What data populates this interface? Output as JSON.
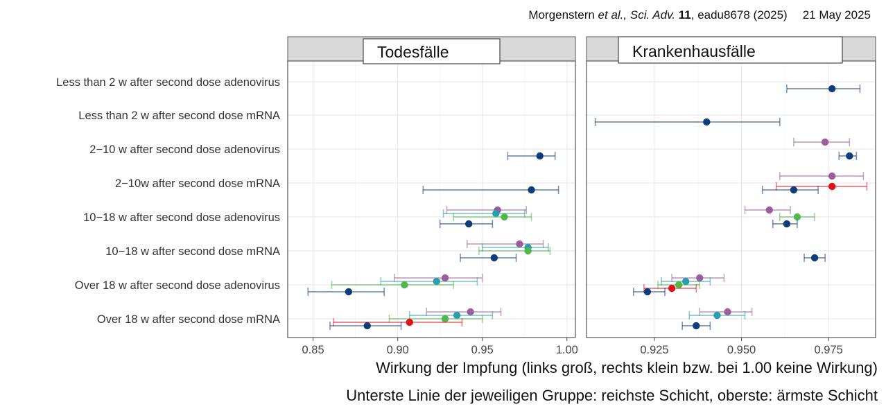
{
  "citation": {
    "authors": "Morgenstern",
    "etal": " et al., ",
    "journal": "Sci. Adv.",
    "volume": " 11",
    "article": ", eadu8678 (2025)",
    "date": "21 May 2025"
  },
  "captions": {
    "line1": "Wirkung der Impfung (links groß, rechts klein bzw. bei 1.00 keine Wirkung)",
    "line2": "Unterste Linie der jeweiligen Gruppe: reichste Schicht, oberste: ärmste Schicht"
  },
  "chart_data": {
    "type": "scatter",
    "subtype": "forest-plot",
    "grid": true,
    "categories": [
      "Less than 2 w after second dose adenovirus",
      "Less than 2 w after second dose mRNA",
      "2−10 w after second dose adenovirus",
      "2−10w after second dose mRNA",
      "10−18 w after second dose adenovirus",
      "10−18 w after second dose mRNA",
      "Over 18 w after second dose adenovirus",
      "Over 18 w after second dose mRNA"
    ],
    "colors": {
      "g1": "#9c5d9c",
      "g2": "#2a9db0",
      "g3": "#4fb848",
      "g4": "#e0111d",
      "g5": "#0f3d7a"
    },
    "panels": [
      {
        "title": "Todesfälle",
        "xlim": [
          0.835,
          1.005
        ],
        "xticks": [
          "0.85",
          "0.90",
          "0.95",
          "1.00"
        ],
        "xtick_values": [
          0.85,
          0.9,
          0.95,
          1.0
        ],
        "points": [
          {
            "row": 2,
            "group": "g5",
            "est": 0.984,
            "lo": 0.965,
            "hi": 0.993
          },
          {
            "row": 3,
            "group": "g5",
            "est": 0.979,
            "lo": 0.915,
            "hi": 0.995
          },
          {
            "row": 4,
            "group": "g1",
            "est": 0.959,
            "lo": 0.929,
            "hi": 0.976
          },
          {
            "row": 4,
            "group": "g2",
            "est": 0.958,
            "lo": 0.927,
            "hi": 0.975
          },
          {
            "row": 4,
            "group": "g3",
            "est": 0.963,
            "lo": 0.933,
            "hi": 0.979
          },
          {
            "row": 4,
            "group": "g5",
            "est": 0.942,
            "lo": 0.925,
            "hi": 0.956
          },
          {
            "row": 5,
            "group": "g1",
            "est": 0.972,
            "lo": 0.941,
            "hi": 0.986
          },
          {
            "row": 5,
            "group": "g2",
            "est": 0.977,
            "lo": 0.95,
            "hi": 0.989
          },
          {
            "row": 5,
            "group": "g3",
            "est": 0.977,
            "lo": 0.948,
            "hi": 0.99
          },
          {
            "row": 5,
            "group": "g5",
            "est": 0.957,
            "lo": 0.937,
            "hi": 0.97
          },
          {
            "row": 6,
            "group": "g1",
            "est": 0.928,
            "lo": 0.898,
            "hi": 0.95
          },
          {
            "row": 6,
            "group": "g2",
            "est": 0.923,
            "lo": 0.89,
            "hi": 0.947
          },
          {
            "row": 6,
            "group": "g3",
            "est": 0.904,
            "lo": 0.861,
            "hi": 0.933
          },
          {
            "row": 6,
            "group": "g5",
            "est": 0.871,
            "lo": 0.847,
            "hi": 0.892
          },
          {
            "row": 7,
            "group": "g1",
            "est": 0.943,
            "lo": 0.917,
            "hi": 0.961
          },
          {
            "row": 7,
            "group": "g2",
            "est": 0.935,
            "lo": 0.907,
            "hi": 0.956
          },
          {
            "row": 7,
            "group": "g3",
            "est": 0.928,
            "lo": 0.895,
            "hi": 0.95
          },
          {
            "row": 7,
            "group": "g4",
            "est": 0.907,
            "lo": 0.862,
            "hi": 0.938
          },
          {
            "row": 7,
            "group": "g5",
            "est": 0.882,
            "lo": 0.86,
            "hi": 0.902
          }
        ]
      },
      {
        "title": "Krankenhausfälle",
        "xlim": [
          0.9055,
          0.9885
        ],
        "xticks": [
          "0.925",
          "0.950",
          "0.975"
        ],
        "xtick_values": [
          0.925,
          0.95,
          0.975
        ],
        "points": [
          {
            "row": 0,
            "group": "g5",
            "est": 0.976,
            "lo": 0.963,
            "hi": 0.984
          },
          {
            "row": 1,
            "group": "g5",
            "est": 0.94,
            "lo": 0.908,
            "hi": 0.961
          },
          {
            "row": 2,
            "group": "g1",
            "est": 0.974,
            "lo": 0.965,
            "hi": 0.981
          },
          {
            "row": 2,
            "group": "g5",
            "est": 0.981,
            "lo": 0.978,
            "hi": 0.983
          },
          {
            "row": 3,
            "group": "g1",
            "est": 0.976,
            "lo": 0.961,
            "hi": 0.985
          },
          {
            "row": 3,
            "group": "g4",
            "est": 0.976,
            "lo": 0.96,
            "hi": 0.986
          },
          {
            "row": 3,
            "group": "g5",
            "est": 0.965,
            "lo": 0.956,
            "hi": 0.972
          },
          {
            "row": 4,
            "group": "g1",
            "est": 0.958,
            "lo": 0.951,
            "hi": 0.964
          },
          {
            "row": 4,
            "group": "g3",
            "est": 0.966,
            "lo": 0.961,
            "hi": 0.971
          },
          {
            "row": 4,
            "group": "g5",
            "est": 0.963,
            "lo": 0.959,
            "hi": 0.966
          },
          {
            "row": 5,
            "group": "g5",
            "est": 0.971,
            "lo": 0.968,
            "hi": 0.974
          },
          {
            "row": 6,
            "group": "g1",
            "est": 0.938,
            "lo": 0.93,
            "hi": 0.945
          },
          {
            "row": 6,
            "group": "g2",
            "est": 0.934,
            "lo": 0.927,
            "hi": 0.941
          },
          {
            "row": 6,
            "group": "g3",
            "est": 0.932,
            "lo": 0.926,
            "hi": 0.938
          },
          {
            "row": 6,
            "group": "g4",
            "est": 0.93,
            "lo": 0.922,
            "hi": 0.937
          },
          {
            "row": 6,
            "group": "g5",
            "est": 0.923,
            "lo": 0.919,
            "hi": 0.928
          },
          {
            "row": 7,
            "group": "g1",
            "est": 0.946,
            "lo": 0.938,
            "hi": 0.953
          },
          {
            "row": 7,
            "group": "g2",
            "est": 0.943,
            "lo": 0.935,
            "hi": 0.951
          },
          {
            "row": 7,
            "group": "g5",
            "est": 0.937,
            "lo": 0.933,
            "hi": 0.941
          }
        ]
      }
    ]
  }
}
